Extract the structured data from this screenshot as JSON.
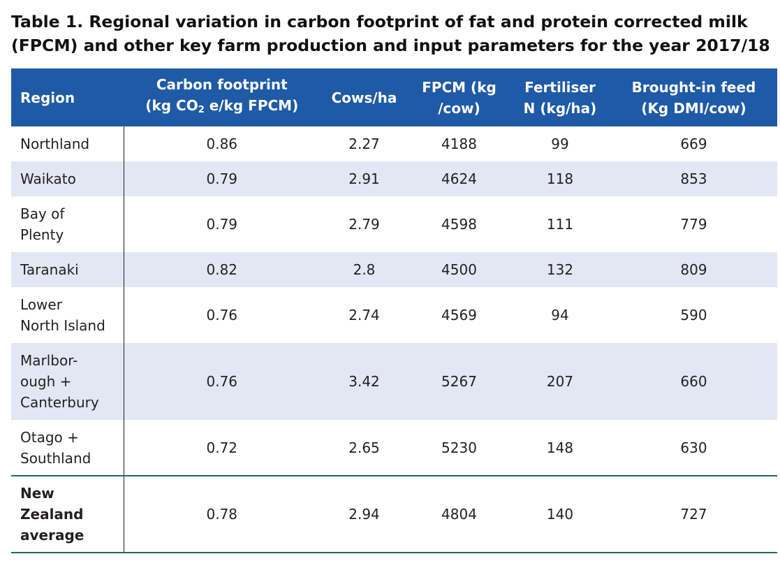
{
  "caption": {
    "line1": "Table 1. Regional variation in carbon footprint of fat and protein corrected milk",
    "line2": "(FPCM) and other key farm production and input parameters for the year 2017/18"
  },
  "headers": {
    "region": "Region",
    "carbon_line1": "Carbon footprint",
    "carbon_line2_pre": "(kg CO",
    "carbon_line2_sub": "2",
    "carbon_line2_post": " e/kg FPCM)",
    "cows": "Cows/ha",
    "fpcm_line1": "FPCM (kg",
    "fpcm_line2": "/cow)",
    "fert_line1": "Fertiliser",
    "fert_line2": "N (kg/ha)",
    "feed_line1": "Brought-in feed",
    "feed_line2": "(Kg DMI/cow)"
  },
  "rows": [
    {
      "region_lines": [
        "Northland"
      ],
      "carbon": "0.86",
      "cows": "2.27",
      "fpcm": "4188",
      "fertiliser": "99",
      "feed": "669"
    },
    {
      "region_lines": [
        "Waikato"
      ],
      "carbon": "0.79",
      "cows": "2.91",
      "fpcm": "4624",
      "fertiliser": "118",
      "feed": "853"
    },
    {
      "region_lines": [
        "Bay of",
        "Plenty"
      ],
      "carbon": "0.79",
      "cows": "2.79",
      "fpcm": "4598",
      "fertiliser": "111",
      "feed": "779"
    },
    {
      "region_lines": [
        "Taranaki"
      ],
      "carbon": "0.82",
      "cows": "2.8",
      "fpcm": "4500",
      "fertiliser": "132",
      "feed": "809"
    },
    {
      "region_lines": [
        "Lower",
        "North Island"
      ],
      "carbon": "0.76",
      "cows": "2.74",
      "fpcm": "4569",
      "fertiliser": "94",
      "feed": "590"
    },
    {
      "region_lines": [
        "Marlbor-",
        "ough +",
        "Canterbury"
      ],
      "carbon": "0.76",
      "cows": "3.42",
      "fpcm": "5267",
      "fertiliser": "207",
      "feed": "660"
    },
    {
      "region_lines": [
        "Otago +",
        "Southland"
      ],
      "carbon": "0.72",
      "cows": "2.65",
      "fpcm": "5230",
      "fertiliser": "148",
      "feed": "630"
    }
  ],
  "total": {
    "region_lines": [
      "New",
      "Zealand",
      "average"
    ],
    "carbon": "0.78",
    "cows": "2.94",
    "fpcm": "4804",
    "fertiliser": "140",
    "feed": "727"
  }
}
